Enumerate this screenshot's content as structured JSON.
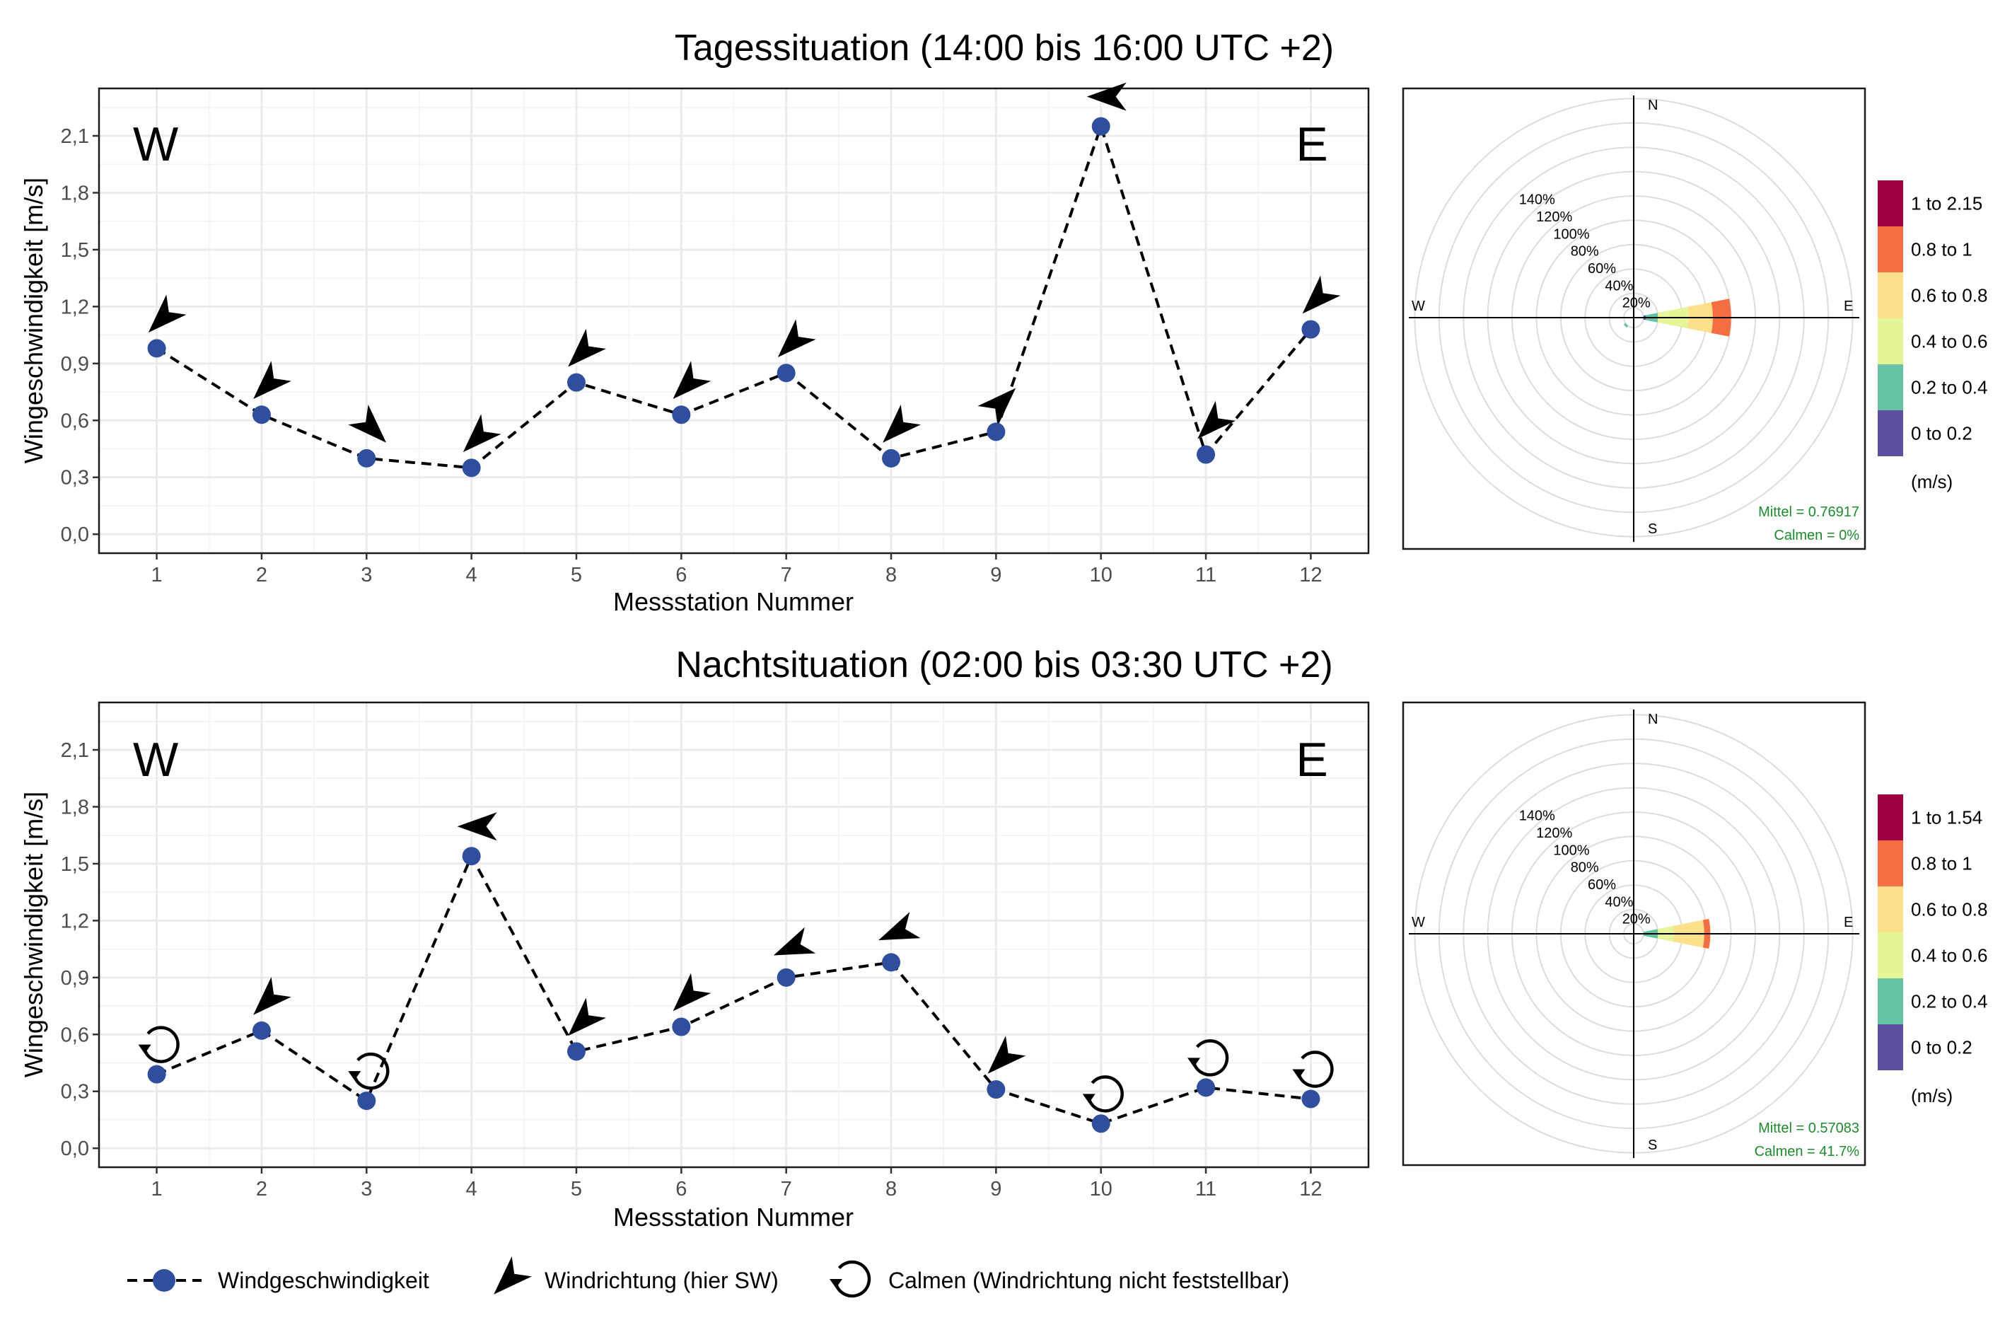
{
  "chart_data": [
    {
      "type": "line",
      "title": "Tagessituation (14:00 bis 16:00 UTC +2)",
      "xlabel": "Messstation Nummer",
      "ylabel": "Wingeschwindigkeit [m/s]",
      "corner_left": "W",
      "corner_right": "E",
      "x": [
        1,
        2,
        3,
        4,
        5,
        6,
        7,
        8,
        9,
        10,
        11,
        12
      ],
      "ylim": [
        -0.1,
        2.35
      ],
      "yticks": [
        "0,0",
        "0,3",
        "0,6",
        "0,9",
        "1,2",
        "1,5",
        "1,8",
        "2,1"
      ],
      "ytick_values": [
        0.0,
        0.3,
        0.6,
        0.9,
        1.2,
        1.5,
        1.8,
        2.1
      ],
      "series": [
        {
          "name": "Windgeschwindigkeit",
          "values": [
            0.98,
            0.63,
            0.4,
            0.35,
            0.8,
            0.63,
            0.85,
            0.4,
            0.54,
            2.15,
            0.42,
            1.08
          ]
        }
      ],
      "wind_direction": [
        "NE",
        "NE",
        "NW",
        "NE",
        "NE",
        "NE",
        "NE",
        "NE",
        "SW",
        "E",
        "NE",
        "NE"
      ],
      "calm": [
        false,
        false,
        false,
        false,
        false,
        false,
        false,
        false,
        false,
        false,
        false,
        false
      ]
    },
    {
      "type": "line",
      "title": "Nachtsituation (02:00 bis 03:30 UTC +2)",
      "xlabel": "Messstation Nummer",
      "ylabel": "Wingeschwindigkeit [m/s]",
      "corner_left": "W",
      "corner_right": "E",
      "x": [
        1,
        2,
        3,
        4,
        5,
        6,
        7,
        8,
        9,
        10,
        11,
        12
      ],
      "ylim": [
        -0.1,
        2.35
      ],
      "yticks": [
        "0,0",
        "0,3",
        "0,6",
        "0,9",
        "1,2",
        "1,5",
        "1,8",
        "2,1"
      ],
      "ytick_values": [
        0.0,
        0.3,
        0.6,
        0.9,
        1.2,
        1.5,
        1.8,
        2.1
      ],
      "series": [
        {
          "name": "Windgeschwindigkeit",
          "values": [
            0.39,
            0.62,
            0.25,
            1.54,
            0.51,
            0.64,
            0.9,
            0.98,
            0.31,
            0.13,
            0.32,
            0.26
          ]
        }
      ],
      "wind_direction": [
        "calm",
        "NE",
        "calm",
        "E",
        "NE",
        "NE",
        "ENE",
        "ENE",
        "NE",
        "calm",
        "calm",
        "calm"
      ],
      "calm": [
        true,
        false,
        true,
        false,
        false,
        false,
        false,
        false,
        false,
        true,
        true,
        true
      ]
    },
    {
      "type": "windrose",
      "ring_labels": [
        "20%",
        "40%",
        "60%",
        "80%",
        "100%",
        "120%",
        "140%"
      ],
      "compass": [
        "N",
        "E",
        "S",
        "W"
      ],
      "legend_title": "(m/s)",
      "bins": [
        "0 to 0.2",
        "0.2 to 0.4",
        "0.4 to 0.6",
        "0.6 to 0.8",
        "0.8 to 1",
        "1 to 2.15"
      ],
      "bin_colors": [
        "#5e4fa2",
        "#66c2a5",
        "#e6f598",
        "#fee08b",
        "#f46d43",
        "#9e0142"
      ],
      "sectors": [
        {
          "direction": "E",
          "cum_percent": [
            0,
            10,
            20,
            45,
            65,
            80
          ]
        },
        {
          "direction": "W",
          "cum_percent": [
            0,
            8,
            8,
            8,
            8,
            8
          ]
        },
        {
          "direction": "SW",
          "cum_percent": [
            0,
            3,
            10,
            10,
            10,
            10
          ]
        }
      ],
      "stats": [
        "Mittel = 0.76917",
        "Calmen = 0%"
      ]
    },
    {
      "type": "windrose",
      "ring_labels": [
        "20%",
        "40%",
        "60%",
        "80%",
        "100%",
        "120%",
        "140%"
      ],
      "compass": [
        "N",
        "E",
        "S",
        "W"
      ],
      "legend_title": "(m/s)",
      "bins": [
        "0 to 0.2",
        "0.2 to 0.4",
        "0.4 to 0.6",
        "0.6 to 0.8",
        "0.8 to 1",
        "1 to 1.54"
      ],
      "bin_colors": [
        "#5e4fa2",
        "#66c2a5",
        "#e6f598",
        "#fee08b",
        "#f46d43",
        "#9e0142"
      ],
      "sectors": [
        {
          "direction": "E",
          "cum_percent": [
            0,
            8,
            20,
            33,
            58,
            63
          ]
        }
      ],
      "stats": [
        "Mittel = 0.57083",
        "Calmen = 41.7%"
      ]
    }
  ],
  "legend": {
    "items": [
      {
        "icon": "dashed-line-with-dot",
        "label": "Windgeschwindigkeit"
      },
      {
        "icon": "wind-arrow",
        "label": "Windrichtung (hier SW)"
      },
      {
        "icon": "calm-circle-arrow",
        "label": "Calmen (Windrichtung nicht feststellbar)"
      }
    ]
  },
  "colors": {
    "point": "#2f4f9e",
    "line": "#000000",
    "grid": "#ebebeb",
    "stat_text": "#1e8a2e"
  }
}
